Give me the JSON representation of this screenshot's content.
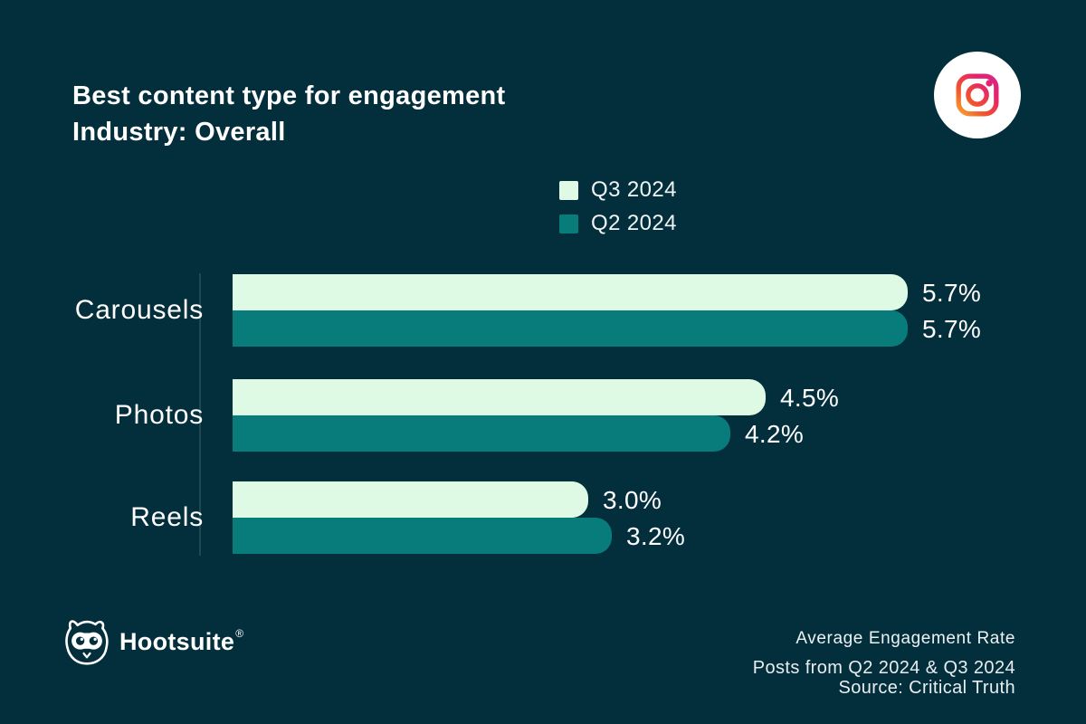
{
  "header": {
    "title_line1": "Best content type for engagement",
    "title_line2": "Industry: Overall"
  },
  "platform": {
    "icon": "instagram-icon"
  },
  "colors": {
    "background": "#032e3c",
    "q3_bar": "#defae4",
    "q2_bar": "#087c7b",
    "text": "#ffffff"
  },
  "chart_data": {
    "type": "bar",
    "orientation": "horizontal",
    "title": "Best content type for engagement — Industry: Overall",
    "categories": [
      "Carousels",
      "Photos",
      "Reels"
    ],
    "series": [
      {
        "name": "Q3 2024",
        "color": "#defae4",
        "values": [
          5.7,
          4.5,
          3.0
        ],
        "labels": [
          "5.7%",
          "4.5%",
          "3.0%"
        ]
      },
      {
        "name": "Q2 2024",
        "color": "#087c7b",
        "values": [
          5.7,
          4.2,
          3.2
        ],
        "labels": [
          "5.7%",
          "4.2%",
          "3.2%"
        ]
      }
    ],
    "value_suffix": "%",
    "xlim": [
      0,
      5.7
    ],
    "grid": false,
    "legend_position": "top-center",
    "value_labels": "outside-end"
  },
  "footer": {
    "brand": "Hootsuite",
    "brand_mark": "®",
    "note_line1": "Average Engagement Rate",
    "note_line2": "Posts from Q2 2024 & Q3 2024",
    "note_line3": "Source: Critical Truth"
  }
}
